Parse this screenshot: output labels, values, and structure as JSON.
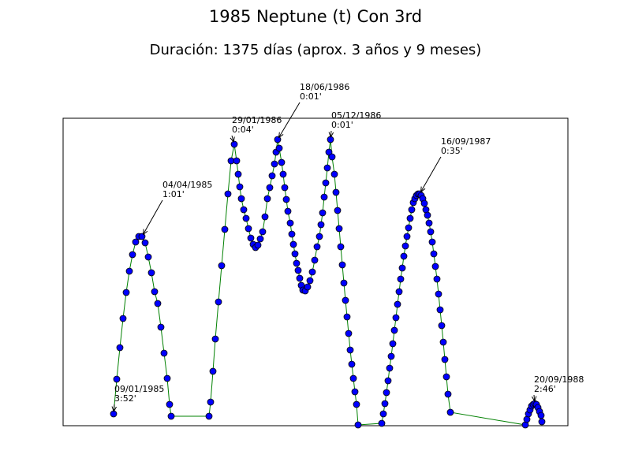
{
  "chart_data": {
    "type": "line",
    "title": "1985 Neptune (t) Con 3rd",
    "subtitle": "Duración: 1375 días (aprox. 3 años y 9 meses)",
    "xlim": [
      0,
      640
    ],
    "ylim": [
      0,
      390
    ],
    "color": "#008000",
    "marker_color": "#0000ff",
    "x": [
      64,
      68,
      72,
      76,
      80,
      84,
      88,
      92,
      96,
      100,
      104,
      108,
      112,
      116,
      120,
      124,
      128,
      132,
      135,
      137,
      185,
      187,
      190,
      193,
      197,
      201,
      205,
      209,
      213,
      217,
      220,
      222,
      224,
      226,
      229,
      232,
      235,
      238,
      241,
      244,
      247,
      250,
      253,
      256,
      259,
      262,
      265,
      268,
      270,
      272,
      274,
      277,
      279,
      281,
      283,
      285,
      288,
      290,
      292,
      294,
      296,
      298,
      300,
      302,
      304,
      307,
      310,
      313,
      316,
      319,
      322,
      325,
      327,
      329,
      331,
      333,
      335,
      337,
      339,
      341,
      344,
      346,
      348,
      350,
      352,
      354,
      356,
      358,
      360,
      362,
      364,
      366,
      368,
      370,
      372,
      374,
      404,
      406,
      408,
      410,
      412,
      414,
      416,
      418,
      420,
      422,
      424,
      426,
      428,
      430,
      432,
      434,
      436,
      438,
      440,
      442,
      444,
      446,
      448,
      450,
      452,
      454,
      456,
      458,
      460,
      462,
      464,
      466,
      468,
      470,
      472,
      474,
      476,
      478,
      480,
      482,
      484,
      486,
      488,
      491,
      586,
      588,
      590,
      592,
      594,
      596,
      598,
      600,
      602,
      604,
      606,
      607
    ],
    "values": [
      15,
      59,
      99,
      136,
      169,
      196,
      217,
      233,
      240,
      240,
      232,
      214,
      194,
      170,
      155,
      125,
      92,
      60,
      27,
      12,
      12,
      30,
      69,
      110,
      157,
      203,
      249,
      294,
      336,
      357,
      336,
      319,
      303,
      288,
      274,
      263,
      250,
      238,
      230,
      226,
      229,
      237,
      246,
      265,
      288,
      302,
      317,
      332,
      347,
      363,
      352,
      334,
      319,
      302,
      287,
      272,
      257,
      243,
      230,
      218,
      206,
      197,
      187,
      178,
      172,
      171,
      176,
      184,
      195,
      210,
      227,
      240,
      255,
      270,
      290,
      308,
      327,
      347,
      363,
      341,
      319,
      296,
      273,
      250,
      227,
      204,
      181,
      159,
      138,
      117,
      96,
      78,
      60,
      43,
      27,
      1,
      3,
      15,
      28,
      42,
      57,
      73,
      88,
      104,
      121,
      137,
      154,
      170,
      186,
      200,
      215,
      228,
      240,
      251,
      263,
      274,
      283,
      288,
      292,
      294,
      294,
      292,
      288,
      282,
      274,
      267,
      257,
      246,
      233,
      218,
      202,
      186,
      167,
      147,
      127,
      106,
      84,
      62,
      40,
      17,
      1,
      8,
      15,
      20,
      25,
      27,
      28,
      27,
      23,
      18,
      13,
      5
    ],
    "annotations": [
      {
        "date": "09/01/1985",
        "time": "3:52'",
        "x": 64,
        "y": 15
      },
      {
        "date": "04/04/1985",
        "time": "1:01'",
        "x": 100,
        "y": 240
      },
      {
        "date": "29/01/1986",
        "time": "0:04'",
        "x": 217,
        "y": 357
      },
      {
        "date": "18/06/1986",
        "time": "0:01'",
        "x": 272,
        "y": 363
      },
      {
        "date": "05/12/1986",
        "time": "0:01'",
        "x": 339,
        "y": 363
      },
      {
        "date": "16/09/1987",
        "time": "0:35'",
        "x": 452,
        "y": 294
      },
      {
        "date": "20/09/1988",
        "time": "2:46'",
        "x": 598,
        "y": 28
      }
    ]
  }
}
